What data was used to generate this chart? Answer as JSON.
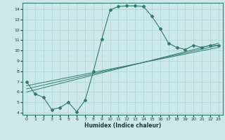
{
  "xlabel": "Humidex (Indice chaleur)",
  "xlim": [
    -0.5,
    23.5
  ],
  "ylim": [
    3.8,
    14.6
  ],
  "yticks": [
    4,
    5,
    6,
    7,
    8,
    9,
    10,
    11,
    12,
    13,
    14
  ],
  "xticks": [
    0,
    1,
    2,
    3,
    4,
    5,
    6,
    7,
    8,
    9,
    10,
    11,
    12,
    13,
    14,
    15,
    16,
    17,
    18,
    19,
    20,
    21,
    22,
    23
  ],
  "bg_color": "#cde8ea",
  "grid_color": "#b0d8dc",
  "line_color": "#2e7d6e",
  "main_curve": {
    "x": [
      0,
      1,
      2,
      3,
      4,
      5,
      6,
      7,
      8,
      9,
      10,
      11,
      12,
      13,
      14,
      15,
      16,
      17,
      18,
      19,
      20,
      21,
      22,
      23
    ],
    "y": [
      7.0,
      5.8,
      5.5,
      4.3,
      4.5,
      5.0,
      4.1,
      5.2,
      8.0,
      11.1,
      13.9,
      14.25,
      14.3,
      14.3,
      14.25,
      13.3,
      12.1,
      10.7,
      10.3,
      10.1,
      10.5,
      10.3,
      10.5,
      10.5
    ]
  },
  "trend_lines": [
    {
      "x": [
        0,
        23
      ],
      "y": [
        6.6,
        10.3
      ]
    },
    {
      "x": [
        0,
        23
      ],
      "y": [
        6.3,
        10.5
      ]
    },
    {
      "x": [
        0,
        23
      ],
      "y": [
        6.0,
        10.7
      ]
    }
  ]
}
